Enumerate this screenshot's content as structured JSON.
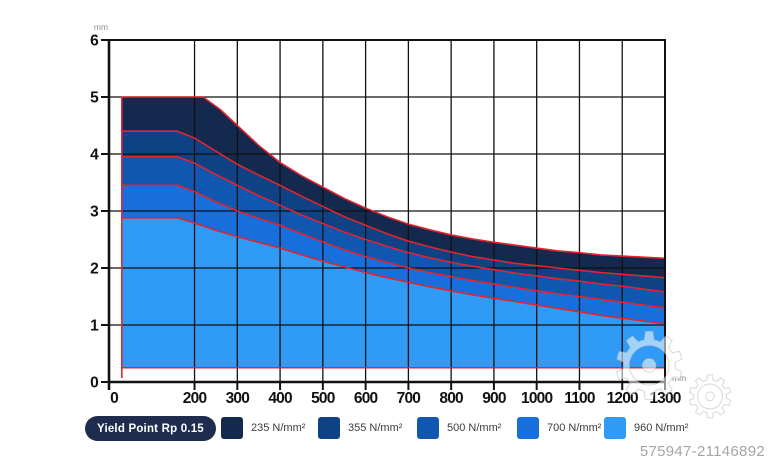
{
  "page": {
    "watermark_id": "575947-21146892",
    "gear_glyph": "⚙"
  },
  "legend": {
    "badge_label": "Yield Point Rp 0.15",
    "items": [
      {
        "label": "235 N/mm²",
        "color": "#14294e"
      },
      {
        "label": "355 N/mm²",
        "color": "#0e4284"
      },
      {
        "label": "500 N/mm²",
        "color": "#0f57b1"
      },
      {
        "label": "700 N/mm²",
        "color": "#176fdc"
      },
      {
        "label": "960 N/mm²",
        "color": "#2f9bf7"
      }
    ]
  },
  "chart_data": {
    "type": "area",
    "title": "Yield Point Rp 0.15",
    "xlabel": "mm",
    "ylabel": "mm",
    "xlim": [
      0,
      1300
    ],
    "ylim": [
      0,
      6
    ],
    "x_ticks": [
      0,
      200,
      300,
      400,
      500,
      600,
      700,
      800,
      900,
      1000,
      1100,
      1200,
      1300
    ],
    "y_ticks": [
      0,
      1,
      2,
      3,
      4,
      5,
      6
    ],
    "grid": true,
    "legend_position": "bottom",
    "outline_color": "#e2242e",
    "x_start": 30,
    "baseline_y": 0.25,
    "series": [
      {
        "name": "235 N/mm²",
        "color": "#14294e",
        "points": [
          [
            30,
            5.0
          ],
          [
            220,
            5.0
          ],
          [
            260,
            4.78
          ],
          [
            300,
            4.5
          ],
          [
            350,
            4.15
          ],
          [
            400,
            3.85
          ],
          [
            450,
            3.62
          ],
          [
            500,
            3.42
          ],
          [
            550,
            3.22
          ],
          [
            600,
            3.05
          ],
          [
            650,
            2.9
          ],
          [
            700,
            2.77
          ],
          [
            750,
            2.67
          ],
          [
            800,
            2.58
          ],
          [
            850,
            2.51
          ],
          [
            900,
            2.45
          ],
          [
            950,
            2.4
          ],
          [
            1000,
            2.35
          ],
          [
            1050,
            2.3
          ],
          [
            1100,
            2.27
          ],
          [
            1150,
            2.23
          ],
          [
            1200,
            2.21
          ],
          [
            1250,
            2.19
          ],
          [
            1300,
            2.17
          ]
        ]
      },
      {
        "name": "355 N/mm²",
        "color": "#0e4284",
        "points": [
          [
            30,
            4.4
          ],
          [
            160,
            4.4
          ],
          [
            200,
            4.28
          ],
          [
            250,
            4.05
          ],
          [
            300,
            3.82
          ],
          [
            350,
            3.63
          ],
          [
            400,
            3.45
          ],
          [
            450,
            3.26
          ],
          [
            500,
            3.08
          ],
          [
            550,
            2.9
          ],
          [
            600,
            2.75
          ],
          [
            650,
            2.6
          ],
          [
            700,
            2.47
          ],
          [
            750,
            2.37
          ],
          [
            800,
            2.28
          ],
          [
            850,
            2.2
          ],
          [
            900,
            2.14
          ],
          [
            950,
            2.08
          ],
          [
            1000,
            2.04
          ],
          [
            1050,
            2.0
          ],
          [
            1100,
            1.96
          ],
          [
            1150,
            1.92
          ],
          [
            1200,
            1.89
          ],
          [
            1250,
            1.86
          ],
          [
            1300,
            1.83
          ]
        ]
      },
      {
        "name": "500 N/mm²",
        "color": "#0f57b1",
        "points": [
          [
            30,
            3.95
          ],
          [
            160,
            3.95
          ],
          [
            200,
            3.84
          ],
          [
            250,
            3.64
          ],
          [
            300,
            3.45
          ],
          [
            350,
            3.27
          ],
          [
            400,
            3.1
          ],
          [
            450,
            2.93
          ],
          [
            500,
            2.78
          ],
          [
            550,
            2.63
          ],
          [
            600,
            2.5
          ],
          [
            650,
            2.38
          ],
          [
            700,
            2.27
          ],
          [
            750,
            2.18
          ],
          [
            800,
            2.1
          ],
          [
            850,
            2.03
          ],
          [
            900,
            1.97
          ],
          [
            950,
            1.91
          ],
          [
            1000,
            1.86
          ],
          [
            1050,
            1.81
          ],
          [
            1100,
            1.77
          ],
          [
            1150,
            1.72
          ],
          [
            1200,
            1.68
          ],
          [
            1250,
            1.63
          ],
          [
            1300,
            1.58
          ]
        ]
      },
      {
        "name": "700 N/mm²",
        "color": "#176fdc",
        "points": [
          [
            30,
            3.45
          ],
          [
            160,
            3.45
          ],
          [
            200,
            3.34
          ],
          [
            250,
            3.16
          ],
          [
            300,
            3.0
          ],
          [
            350,
            2.87
          ],
          [
            400,
            2.75
          ],
          [
            450,
            2.6
          ],
          [
            500,
            2.46
          ],
          [
            550,
            2.32
          ],
          [
            600,
            2.2
          ],
          [
            650,
            2.1
          ],
          [
            700,
            2.0
          ],
          [
            750,
            1.92
          ],
          [
            800,
            1.85
          ],
          [
            850,
            1.78
          ],
          [
            900,
            1.72
          ],
          [
            950,
            1.66
          ],
          [
            1000,
            1.6
          ],
          [
            1050,
            1.55
          ],
          [
            1100,
            1.5
          ],
          [
            1150,
            1.45
          ],
          [
            1200,
            1.4
          ],
          [
            1250,
            1.35
          ],
          [
            1300,
            1.3
          ]
        ]
      },
      {
        "name": "960 N/mm²",
        "color": "#2f9bf7",
        "points": [
          [
            30,
            2.88
          ],
          [
            160,
            2.88
          ],
          [
            200,
            2.79
          ],
          [
            250,
            2.66
          ],
          [
            300,
            2.55
          ],
          [
            350,
            2.45
          ],
          [
            400,
            2.35
          ],
          [
            450,
            2.23
          ],
          [
            500,
            2.12
          ],
          [
            550,
            2.02
          ],
          [
            600,
            1.92
          ],
          [
            650,
            1.83
          ],
          [
            700,
            1.75
          ],
          [
            750,
            1.67
          ],
          [
            800,
            1.6
          ],
          [
            850,
            1.53
          ],
          [
            900,
            1.47
          ],
          [
            950,
            1.41
          ],
          [
            1000,
            1.35
          ],
          [
            1050,
            1.29
          ],
          [
            1100,
            1.23
          ],
          [
            1150,
            1.17
          ],
          [
            1200,
            1.12
          ],
          [
            1250,
            1.07
          ],
          [
            1300,
            1.02
          ]
        ]
      }
    ]
  }
}
